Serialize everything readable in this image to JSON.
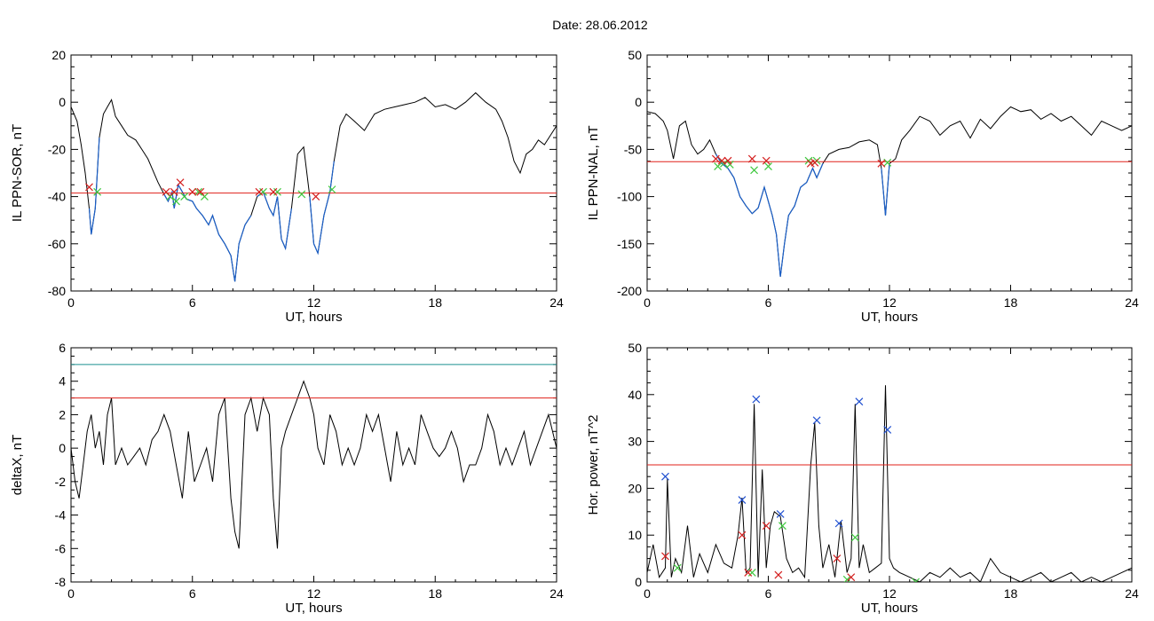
{
  "figure": {
    "title": "Date:  28.06.2012"
  },
  "colors": {
    "axis": "#000000",
    "signal": "#000000",
    "highlight": "#1a5fc8",
    "threshold": "#e0201a",
    "threshold_alt": "#1a8f8f",
    "marker_red": "#d42020",
    "marker_green": "#3ec83e",
    "marker_blue": "#2050d0"
  },
  "chart_data": [
    {
      "type": "line",
      "ylabel": "IL PPN-SOR, nT",
      "xlabel": "UT, hours",
      "xlim": [
        0,
        24
      ],
      "ylim": [
        -80,
        20
      ],
      "xticks": [
        0,
        6,
        12,
        18,
        24
      ],
      "yticks": [
        20,
        0,
        -20,
        -40,
        -60,
        -80
      ],
      "threshold": -38.5,
      "series": {
        "x": [
          0.0,
          0.3,
          0.5,
          0.7,
          0.9,
          1.0,
          1.2,
          1.4,
          1.6,
          1.8,
          2.0,
          2.2,
          2.5,
          2.8,
          3.2,
          3.5,
          3.8,
          4.0,
          4.3,
          4.6,
          4.8,
          5.0,
          5.1,
          5.3,
          5.5,
          5.7,
          6.0,
          6.2,
          6.5,
          6.8,
          7.0,
          7.3,
          7.6,
          7.9,
          8.1,
          8.3,
          8.6,
          8.9,
          9.2,
          9.5,
          9.8,
          10.0,
          10.2,
          10.4,
          10.6,
          10.9,
          11.2,
          11.5,
          11.8,
          12.0,
          12.2,
          12.5,
          12.8,
          13.0,
          13.3,
          13.6,
          14.0,
          14.5,
          15.0,
          15.5,
          16.0,
          16.5,
          17.0,
          17.5,
          18.0,
          18.5,
          19.0,
          19.5,
          20.0,
          20.5,
          21.0,
          21.3,
          21.6,
          21.9,
          22.2,
          22.5,
          22.8,
          23.1,
          23.4,
          23.7,
          24.0
        ],
        "y": [
          -2,
          -8,
          -18,
          -30,
          -45,
          -56,
          -45,
          -15,
          -5,
          -2,
          1,
          -6,
          -10,
          -14,
          -16,
          -20,
          -24,
          -28,
          -34,
          -39,
          -42,
          -38,
          -45,
          -35,
          -38,
          -41,
          -42,
          -45,
          -48,
          -52,
          -48,
          -56,
          -60,
          -65,
          -76,
          -60,
          -52,
          -48,
          -40,
          -38,
          -45,
          -48,
          -40,
          -58,
          -62,
          -45,
          -22,
          -19,
          -40,
          -60,
          -64,
          -48,
          -38,
          -25,
          -10,
          -5,
          -8,
          -12,
          -5,
          -3,
          -2,
          -1,
          0,
          2,
          -2,
          -1,
          -3,
          0,
          4,
          0,
          -3,
          -8,
          -15,
          -25,
          -30,
          -22,
          -20,
          -16,
          -18,
          -14,
          -10
        ]
      },
      "highlight_ranges": [
        [
          0.9,
          1.4
        ],
        [
          4.6,
          8.9
        ],
        [
          9.2,
          11.0
        ],
        [
          11.8,
          13.0
        ]
      ],
      "red_markers": {
        "x": [
          0.9,
          4.7,
          5.1,
          5.4,
          6.0,
          6.4,
          9.3,
          10.0,
          12.1
        ],
        "y": [
          -36,
          -38,
          -38,
          -34,
          -38,
          -38,
          -38,
          -38,
          -40
        ]
      },
      "green_markers": {
        "x": [
          1.3,
          4.9,
          5.2,
          5.6,
          6.3,
          6.6,
          9.5,
          10.2,
          11.4,
          12.9
        ],
        "y": [
          -38,
          -40,
          -42,
          -40,
          -38,
          -40,
          -38,
          -38,
          -39,
          -37
        ]
      }
    },
    {
      "type": "line",
      "ylabel": "IL PPN-NAL, nT",
      "xlabel": "UT, hours",
      "xlim": [
        0,
        24
      ],
      "ylim": [
        -200,
        50
      ],
      "xticks": [
        0,
        6,
        12,
        18,
        24
      ],
      "yticks": [
        50,
        0,
        -50,
        -100,
        -150,
        -200
      ],
      "threshold": -63,
      "series": {
        "x": [
          0.0,
          0.4,
          0.8,
          1.0,
          1.3,
          1.6,
          1.9,
          2.2,
          2.5,
          2.8,
          3.1,
          3.4,
          3.7,
          4.0,
          4.3,
          4.6,
          4.9,
          5.2,
          5.5,
          5.8,
          6.0,
          6.2,
          6.4,
          6.6,
          6.8,
          7.0,
          7.3,
          7.6,
          7.9,
          8.2,
          8.4,
          8.7,
          9.0,
          9.5,
          10.0,
          10.5,
          11.0,
          11.4,
          11.6,
          11.8,
          12.0,
          12.3,
          12.6,
          13.0,
          13.5,
          14.0,
          14.5,
          15.0,
          15.5,
          16.0,
          16.5,
          17.0,
          17.5,
          18.0,
          18.5,
          19.0,
          19.5,
          20.0,
          20.5,
          21.0,
          21.5,
          22.0,
          22.5,
          23.0,
          23.5,
          24.0
        ],
        "y": [
          -10,
          -12,
          -20,
          -30,
          -60,
          -25,
          -20,
          -45,
          -55,
          -50,
          -40,
          -55,
          -65,
          -70,
          -80,
          -100,
          -110,
          -118,
          -112,
          -90,
          -105,
          -120,
          -140,
          -185,
          -150,
          -120,
          -110,
          -90,
          -85,
          -70,
          -80,
          -65,
          -55,
          -50,
          -48,
          -42,
          -40,
          -45,
          -70,
          -120,
          -65,
          -60,
          -40,
          -30,
          -15,
          -20,
          -35,
          -25,
          -20,
          -38,
          -18,
          -28,
          -15,
          -5,
          -10,
          -8,
          -18,
          -12,
          -20,
          -15,
          -25,
          -35,
          -20,
          -25,
          -30,
          -25
        ]
      },
      "highlight_ranges": [
        [
          3.4,
          8.7
        ],
        [
          11.5,
          12.0
        ]
      ],
      "red_markers": {
        "x": [
          3.4,
          3.7,
          4.0,
          5.2,
          5.9,
          8.1,
          8.3,
          11.6
        ],
        "y": [
          -60,
          -62,
          -62,
          -60,
          -62,
          -65,
          -64,
          -65
        ]
      },
      "green_markers": {
        "x": [
          3.5,
          3.8,
          4.1,
          5.3,
          6.0,
          8.0,
          8.4,
          11.9
        ],
        "y": [
          -68,
          -65,
          -66,
          -72,
          -68,
          -62,
          -62,
          -64
        ]
      }
    },
    {
      "type": "line",
      "ylabel": "deltaX, nT",
      "xlabel": "UT, hours",
      "xlim": [
        0,
        24
      ],
      "ylim": [
        -8,
        6
      ],
      "xticks": [
        0,
        6,
        12,
        18,
        24
      ],
      "yticks": [
        6,
        4,
        2,
        0,
        -2,
        -4,
        -6,
        -8
      ],
      "threshold": 3,
      "threshold_alt": 5,
      "series": {
        "x": [
          0.0,
          0.2,
          0.4,
          0.6,
          0.8,
          1.0,
          1.2,
          1.4,
          1.6,
          1.8,
          2.0,
          2.2,
          2.5,
          2.8,
          3.1,
          3.4,
          3.7,
          4.0,
          4.3,
          4.6,
          4.9,
          5.2,
          5.5,
          5.8,
          6.1,
          6.4,
          6.7,
          7.0,
          7.3,
          7.6,
          7.9,
          8.1,
          8.3,
          8.6,
          8.9,
          9.2,
          9.5,
          9.8,
          10.0,
          10.2,
          10.4,
          10.6,
          10.9,
          11.2,
          11.5,
          11.8,
          12.0,
          12.2,
          12.5,
          12.8,
          13.1,
          13.4,
          13.7,
          14.0,
          14.3,
          14.6,
          14.9,
          15.2,
          15.5,
          15.8,
          16.1,
          16.4,
          16.7,
          17.0,
          17.3,
          17.6,
          17.9,
          18.2,
          18.5,
          18.8,
          19.1,
          19.4,
          19.7,
          20.0,
          20.3,
          20.6,
          20.9,
          21.2,
          21.5,
          21.8,
          22.1,
          22.4,
          22.7,
          23.0,
          23.3,
          23.6,
          24.0
        ],
        "y": [
          0,
          -2,
          -3,
          -1,
          1,
          2,
          0,
          1,
          -1,
          2,
          3,
          -1,
          0,
          -1,
          -0.5,
          0,
          -1,
          0.5,
          1,
          2,
          1,
          -1,
          -3,
          1,
          -2,
          -1,
          0,
          -2,
          2,
          3,
          -3,
          -5,
          -6,
          2,
          3,
          1,
          3,
          2,
          -3,
          -6,
          0,
          1,
          2,
          3,
          4,
          3,
          2,
          0,
          -1,
          2,
          1,
          -1,
          0,
          -1,
          0,
          2,
          1,
          2,
          0,
          -2,
          1,
          -1,
          0,
          -1,
          2,
          1,
          0,
          -0.5,
          0,
          1,
          0,
          -2,
          -1,
          -1,
          0,
          2,
          1,
          -1,
          0,
          -1,
          0,
          1,
          -1,
          0,
          1,
          2,
          0
        ]
      }
    },
    {
      "type": "line",
      "ylabel": "Hor. power, nT^2",
      "xlabel": "UT, hours",
      "xlim": [
        0,
        24
      ],
      "ylim": [
        0,
        50
      ],
      "xticks": [
        0,
        6,
        12,
        18,
        24
      ],
      "yticks": [
        50,
        40,
        30,
        20,
        10,
        0
      ],
      "threshold": 25,
      "series": {
        "x": [
          0.0,
          0.3,
          0.6,
          0.9,
          1.0,
          1.2,
          1.4,
          1.7,
          2.0,
          2.3,
          2.6,
          3.0,
          3.4,
          3.8,
          4.2,
          4.5,
          4.7,
          4.9,
          5.1,
          5.3,
          5.5,
          5.7,
          5.9,
          6.1,
          6.3,
          6.6,
          6.9,
          7.2,
          7.5,
          7.8,
          8.1,
          8.3,
          8.5,
          8.7,
          9.0,
          9.3,
          9.6,
          9.9,
          10.1,
          10.3,
          10.5,
          10.7,
          11.0,
          11.3,
          11.6,
          11.8,
          12.0,
          12.2,
          12.5,
          13.0,
          13.5,
          14.0,
          14.5,
          15.0,
          15.5,
          16.0,
          16.5,
          17.0,
          17.5,
          18.0,
          18.5,
          19.0,
          19.5,
          20.0,
          20.5,
          21.0,
          21.5,
          22.0,
          22.5,
          23.0,
          23.5,
          24.0
        ],
        "y": [
          2,
          8,
          1,
          3,
          22,
          1,
          5,
          2,
          12,
          1,
          6,
          2,
          8,
          4,
          3,
          10,
          18,
          2,
          3,
          38,
          1,
          24,
          3,
          12,
          15,
          14,
          5,
          2,
          3,
          1,
          25,
          34,
          12,
          3,
          8,
          1,
          13,
          2,
          5,
          38,
          3,
          8,
          2,
          3,
          4,
          42,
          5,
          3,
          2,
          1,
          0,
          2,
          1,
          3,
          1,
          2,
          0,
          5,
          2,
          1,
          0,
          1,
          2,
          0,
          1,
          2,
          0,
          1,
          0,
          1,
          2,
          3
        ]
      },
      "red_markers": {
        "x": [
          0.9,
          4.7,
          5.0,
          5.9,
          6.5,
          9.4,
          10.1
        ],
        "y": [
          5.5,
          10,
          2,
          12,
          1.5,
          5,
          1
        ]
      },
      "green_markers": {
        "x": [
          1.5,
          5.2,
          6.7,
          9.9,
          10.3,
          13.3
        ],
        "y": [
          3,
          2,
          12,
          0.5,
          9.5,
          0
        ]
      },
      "blue_markers": {
        "x": [
          0.9,
          4.7,
          5.4,
          6.6,
          8.4,
          9.5,
          10.5,
          11.9
        ],
        "y": [
          22.5,
          17.5,
          39,
          14.5,
          34.5,
          12.5,
          38.5,
          32.5
        ]
      }
    }
  ]
}
